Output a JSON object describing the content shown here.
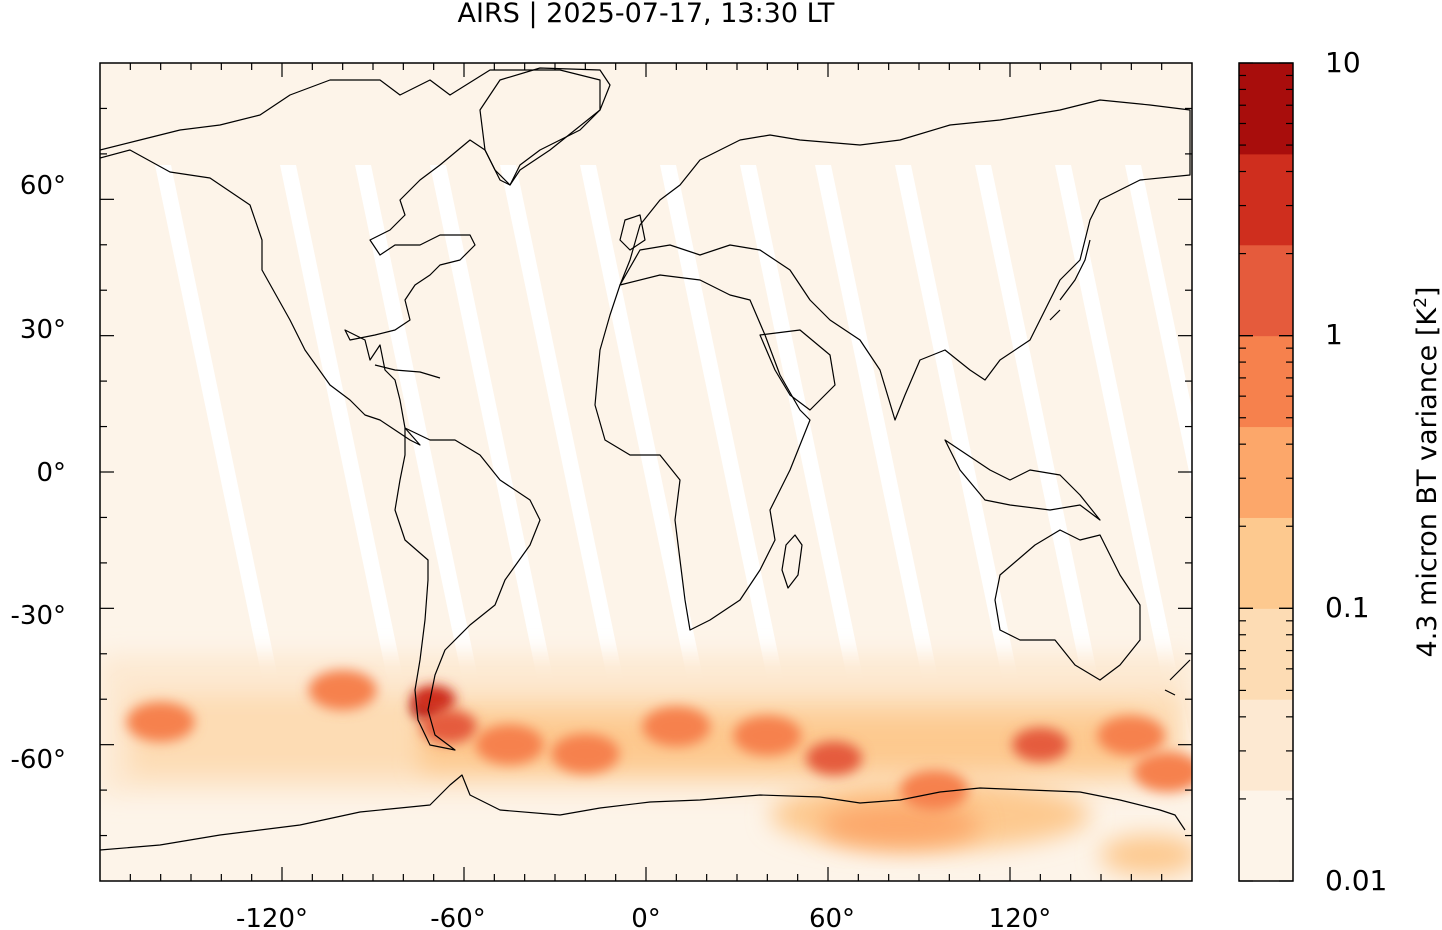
{
  "title": "AIRS | 2025-07-17, 13:30 LT",
  "map": {
    "projection": "plate-carree",
    "lon_range": [
      -180,
      180
    ],
    "lat_range": [
      -90,
      90
    ],
    "lon_ticks": [
      -120,
      -60,
      0,
      60,
      120
    ],
    "lat_ticks": [
      60,
      30,
      0,
      -30,
      -60
    ],
    "lon_tick_labels": [
      "-120°",
      "-60°",
      "0°",
      "60°",
      "120°"
    ],
    "lat_tick_labels": [
      "60°",
      "30°",
      "0°",
      "-30°",
      "-60°"
    ],
    "background_level_color": "#fdf4e9",
    "swath_gap_color": "#ffffff",
    "coastline_color": "#000000",
    "hotspots": [
      {
        "lon": -72,
        "lat": -52,
        "level": 6
      },
      {
        "lon": -70,
        "lat": -50,
        "level": 5
      },
      {
        "lon": -65,
        "lat": -56,
        "level": 4
      },
      {
        "lon": -100,
        "lat": -48,
        "level": 3
      },
      {
        "lon": -160,
        "lat": -55,
        "level": 3
      },
      {
        "lon": -45,
        "lat": -60,
        "level": 3
      },
      {
        "lon": -20,
        "lat": -62,
        "level": 3
      },
      {
        "lon": 10,
        "lat": -56,
        "level": 3
      },
      {
        "lon": 40,
        "lat": -58,
        "level": 3
      },
      {
        "lon": 62,
        "lat": -63,
        "level": 4
      },
      {
        "lon": 95,
        "lat": -70,
        "level": 3
      },
      {
        "lon": 130,
        "lat": -60,
        "level": 4
      },
      {
        "lon": 160,
        "lat": -58,
        "level": 3
      },
      {
        "lon": 172,
        "lat": -66,
        "level": 3
      }
    ]
  },
  "colorbar": {
    "label_text": "4.3 micron BT variance [K",
    "label_sup": "2",
    "label_close": "]",
    "scale": "log",
    "range": [
      0.01,
      10
    ],
    "tick_labels": [
      "10",
      "1",
      "0.1",
      "0.01"
    ],
    "tick_values": [
      10,
      1,
      0.1,
      0.01
    ],
    "colors": [
      "#fdf4e9",
      "#fde9d2",
      "#fddcb4",
      "#fdc98f",
      "#fca76a",
      "#f6814d",
      "#e55b3c",
      "#cf2e1e",
      "#a80d0c"
    ]
  }
}
